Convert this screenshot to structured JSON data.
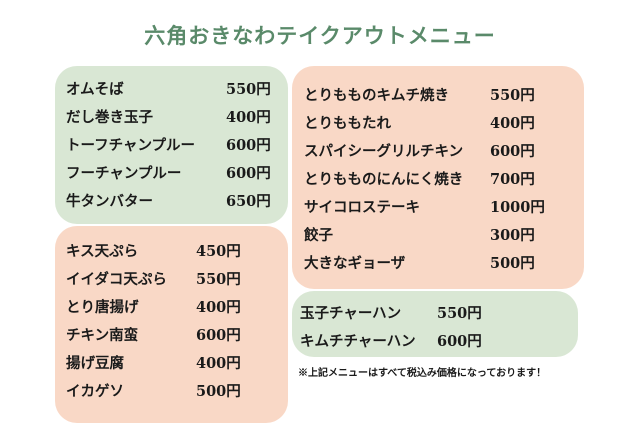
{
  "title": "六角おきなわテイクアウトメニュー",
  "menu_a": [
    {
      "name": "オムそば",
      "price": "550円"
    },
    {
      "name": "だし巻き玉子",
      "price": "400円"
    },
    {
      "name": "トーフチャンプルー",
      "price": "600円"
    },
    {
      "name": "フーチャンプルー",
      "price": "600円"
    },
    {
      "name": "牛タンバター",
      "price": "650円"
    }
  ],
  "menu_b": [
    {
      "name": "キス天ぷら",
      "price": "450円"
    },
    {
      "name": "イイダコ天ぷら",
      "price": "550円"
    },
    {
      "name": "とり唐揚げ",
      "price": "400円"
    },
    {
      "name": "チキン南蛮",
      "price": "600円"
    },
    {
      "name": "揚げ豆腐",
      "price": "400円"
    },
    {
      "name": "イカゲソ",
      "price": "500円"
    }
  ],
  "menu_c": [
    {
      "name": "とりもものキムチ焼き",
      "price": "550円"
    },
    {
      "name": "とりももたれ",
      "price": "400円"
    },
    {
      "name": "スパイシーグリルチキン",
      "price": "600円"
    },
    {
      "name": "とりもものにんにく焼き",
      "price": "700円"
    },
    {
      "name": "サイコロステーキ",
      "price": "1000円"
    },
    {
      "name": "餃子",
      "price": "300円"
    },
    {
      "name": "大きなギョーザ",
      "price": "500円"
    }
  ],
  "menu_d": [
    {
      "name": "玉子チャーハン",
      "price": "550円"
    },
    {
      "name": "キムチチャーハン",
      "price": "600円"
    }
  ],
  "note": "※上記メニューはすべて税込み価格になっております！",
  "colors": {
    "title": "#5a8a6a",
    "green_panel": "#d9e7d4",
    "peach_panel": "#f9d8c6"
  }
}
